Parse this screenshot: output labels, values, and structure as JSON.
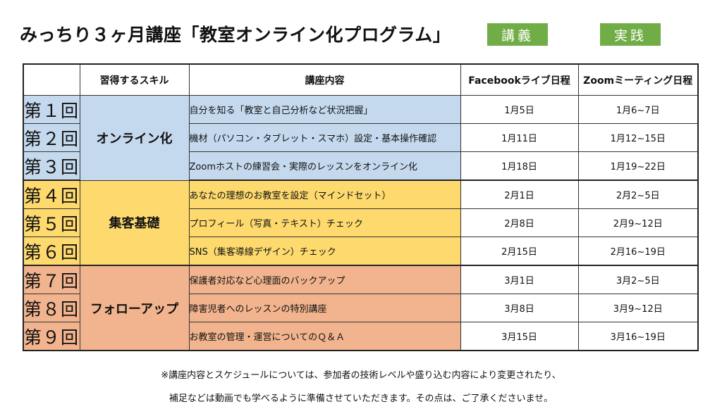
{
  "title": "みっちり３ヶ月講座「教室オンライン化プログラム」",
  "legend": {
    "lecture": "講義",
    "practice": "実践",
    "lecture_color": "#70ad47",
    "practice_color": "#70ad47"
  },
  "headers": {
    "num": "",
    "skill": "習得するスキル",
    "content": "講座内容",
    "facebook": "Facebookライブ日程",
    "zoom": "Zoomミーティング日程"
  },
  "rows": [
    {
      "num": "第１回",
      "content": "自分を知る「教室と自己分析など状況把握」",
      "facebook": "1月5日",
      "zoom": "1月6~7日"
    },
    {
      "num": "第２回",
      "content": "機材（パソコン・タブレット・スマホ）設定・基本操作確認",
      "facebook": "1月11日",
      "zoom": "1月12~15日"
    },
    {
      "num": "第３回",
      "content": "Zoomホストの練習会・実際のレッスンをオンライン化",
      "facebook": "1月18日",
      "zoom": "1月19~22日"
    },
    {
      "num": "第４回",
      "content": "あなたの理想のお教室を設定（マインドセット）",
      "facebook": "2月1日",
      "zoom": "2月2~5日"
    },
    {
      "num": "第５回",
      "content": "プロフィール（写真・テキスト）チェック",
      "facebook": "2月8日",
      "zoom": "2月9~12日"
    },
    {
      "num": "第６回",
      "content": "SNS（集客導線デザイン）チェック",
      "facebook": "2月15日",
      "zoom": "2月16~19日"
    },
    {
      "num": "第７回",
      "content": "保護者対応など心理面のバックアップ",
      "facebook": "3月1日",
      "zoom": "3月2~5日"
    },
    {
      "num": "第８回",
      "content": "障害児者へのレッスンの特別講座",
      "facebook": "3月8日",
      "zoom": "3月9~12日"
    },
    {
      "num": "第９回",
      "content": "お教室の管理・運営についてのＱ＆Ａ",
      "facebook": "3月15日",
      "zoom": "3月16~19日"
    }
  ],
  "skills": [
    "オンライン化",
    "集客基礎",
    "フォローアップ"
  ],
  "group_colors": {
    "online": "#c5d9ee",
    "marketing": "#fdd96e",
    "followup": "#f2b48e"
  },
  "footnote": {
    "line1": "※講座内容とスケジュールについては、参加者の技術レベルや盛り込む内容により変更されたり、",
    "line2": "補足などは動画でも学べるように準備させていただきます。その点は、ご了承くださいませ。"
  }
}
